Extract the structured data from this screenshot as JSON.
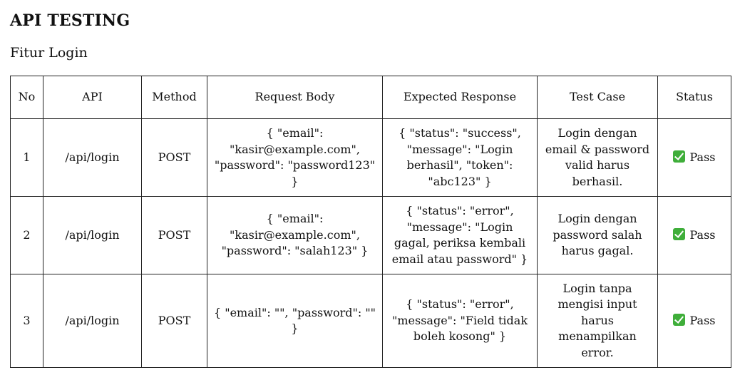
{
  "page": {
    "title": "API TESTING",
    "subtitle": "Fitur Login"
  },
  "table": {
    "headers": [
      "No",
      "API",
      "Method",
      "Request Body",
      "Expected Response",
      "Test Case",
      "Status"
    ],
    "rows": [
      {
        "no": "1",
        "api": "/api/login",
        "method": "POST",
        "request_body": "{ \"email\": \"kasir@example.com\", \"password\": \"password123\" }",
        "expected_response": "{ \"status\": \"success\", \"message\": \"Login berhasil\", \"token\": \"abc123\" }",
        "test_case": "Login dengan email & password valid harus berhasil.",
        "status": "Pass",
        "status_icon": "check-mark-icon"
      },
      {
        "no": "2",
        "api": "/api/login",
        "method": "POST",
        "request_body": "{ \"email\": \"kasir@example.com\", \"password\": \"salah123\" }",
        "expected_response": "{ \"status\": \"error\", \"message\": \"Login gagal, periksa kembali email atau password\" }",
        "test_case": "Login dengan password salah harus gagal.",
        "status": "Pass",
        "status_icon": "check-mark-icon"
      },
      {
        "no": "3",
        "api": "/api/login",
        "method": "POST",
        "request_body": "{ \"email\": \"\", \"password\": \"\" }",
        "expected_response": "{ \"status\": \"error\", \"message\": \"Field tidak boleh kosong\" }",
        "test_case": "Login tanpa mengisi input harus menampilkan error.",
        "status": "Pass",
        "status_icon": "check-mark-icon"
      }
    ]
  },
  "colors": {
    "text": "#111111",
    "border": "#222222",
    "pass_icon": "#3fae3a"
  }
}
